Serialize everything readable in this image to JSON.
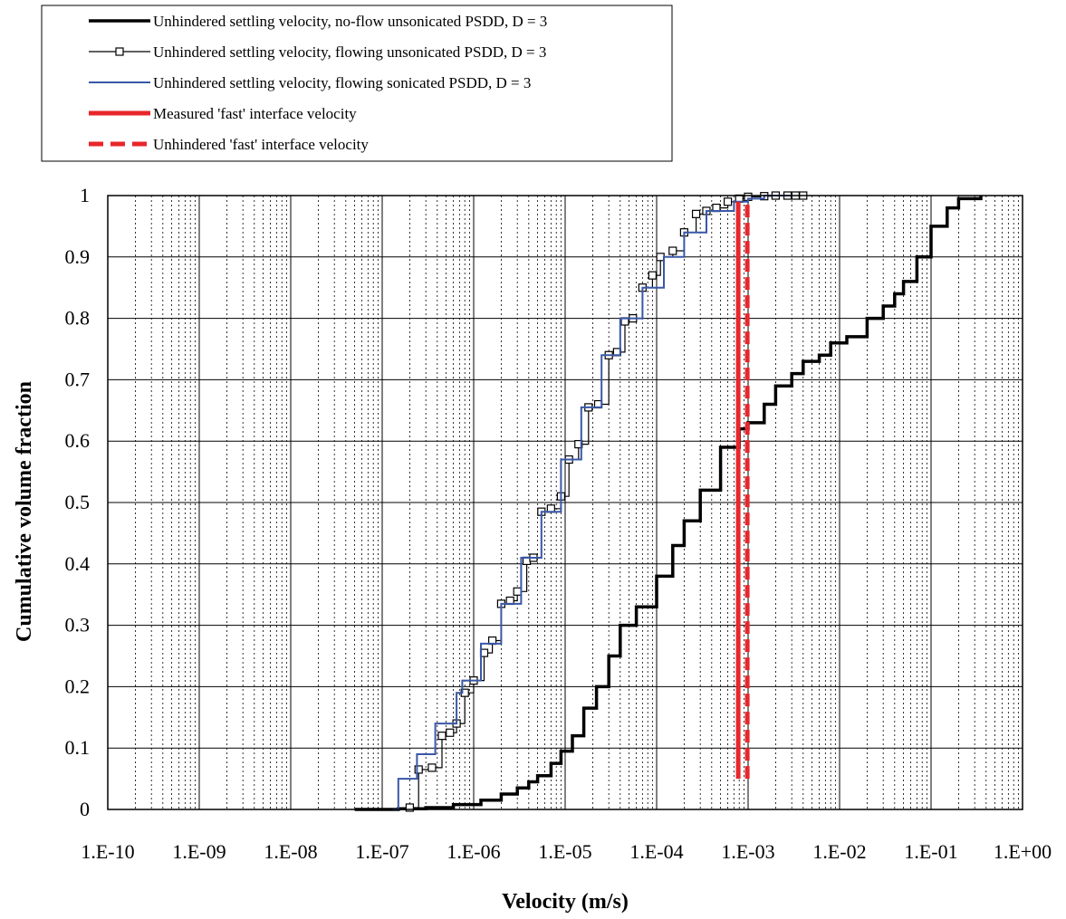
{
  "chart_data": {
    "type": "line",
    "xlabel": "Velocity (m/s)",
    "ylabel": "Cumulative volume fraction",
    "x_scale": "log",
    "xlim": [
      1e-10,
      1
    ],
    "ylim": [
      0,
      1
    ],
    "x_tick_labels": [
      "1.E-10",
      "1.E-09",
      "1.E-08",
      "1.E-07",
      "1.E-06",
      "1.E-05",
      "1.E-04",
      "1.E-03",
      "1.E-02",
      "1.E-01",
      "1.E+00"
    ],
    "y_tick_labels": [
      "0",
      "0.1",
      "0.2",
      "0.3",
      "0.4",
      "0.5",
      "0.6",
      "0.7",
      "0.8",
      "0.9",
      "1"
    ],
    "grid": {
      "major": "solid",
      "minor_x": "dotted"
    },
    "legend_position": "top-left, above plot",
    "series": [
      {
        "name": "Unhindered settling velocity, no-flow unsonicated PSDD, D = 3",
        "color": "#000000",
        "style": "thick-solid",
        "x": [
          5e-08,
          1.5e-07,
          3e-07,
          6e-07,
          1.2e-06,
          2e-06,
          3e-06,
          4e-06,
          5e-06,
          7e-06,
          9e-06,
          1.2e-05,
          1.6e-05,
          2.2e-05,
          3e-05,
          4e-05,
          6e-05,
          0.0001,
          0.00015,
          0.0002,
          0.0003,
          0.0005,
          0.0008,
          0.001,
          0.0015,
          0.002,
          0.003,
          0.004,
          0.006,
          0.008,
          0.012,
          0.02,
          0.03,
          0.04,
          0.05,
          0.07,
          0.1,
          0.15,
          0.2,
          0.35
        ],
        "y": [
          0,
          0.001,
          0.003,
          0.008,
          0.015,
          0.025,
          0.035,
          0.045,
          0.055,
          0.075,
          0.095,
          0.12,
          0.165,
          0.2,
          0.25,
          0.3,
          0.33,
          0.38,
          0.43,
          0.47,
          0.52,
          0.59,
          0.62,
          0.63,
          0.66,
          0.69,
          0.71,
          0.73,
          0.74,
          0.76,
          0.77,
          0.8,
          0.82,
          0.84,
          0.86,
          0.9,
          0.95,
          0.98,
          0.995,
          1.0
        ]
      },
      {
        "name": "Unhindered settling velocity, flowing unsonicated PSDD, D = 3",
        "color": "#000000",
        "style": "thin-solid-square-markers",
        "x": [
          2e-07,
          2.5e-07,
          3.5e-07,
          4.5e-07,
          5.5e-07,
          6.5e-07,
          8e-07,
          1e-06,
          1.3e-06,
          1.6e-06,
          2e-06,
          2.5e-06,
          3e-06,
          3.8e-06,
          4.5e-06,
          5.5e-06,
          7e-06,
          9e-06,
          1.1e-05,
          1.4e-05,
          1.8e-05,
          2.3e-05,
          3e-05,
          3.7e-05,
          4.5e-05,
          5.5e-05,
          7e-05,
          9e-05,
          0.00011,
          0.00015,
          0.0002,
          0.00027,
          0.00035,
          0.00045,
          0.0006,
          0.0008,
          0.001,
          0.0015,
          0.002,
          0.0027,
          0.0033,
          0.004
        ],
        "y": [
          0.003,
          0.065,
          0.068,
          0.12,
          0.125,
          0.14,
          0.19,
          0.21,
          0.255,
          0.275,
          0.335,
          0.34,
          0.355,
          0.405,
          0.41,
          0.485,
          0.49,
          0.51,
          0.57,
          0.595,
          0.655,
          0.66,
          0.74,
          0.745,
          0.795,
          0.8,
          0.85,
          0.87,
          0.9,
          0.91,
          0.94,
          0.97,
          0.975,
          0.98,
          0.99,
          0.995,
          0.998,
          0.999,
          1.0,
          1.0,
          1.0,
          1.0
        ]
      },
      {
        "name": "Unhindered settling velocity, flowing sonicated PSDD, D = 3",
        "color": "#3a58a8",
        "style": "solid",
        "x": [
          1.3e-07,
          1.5e-07,
          2.4e-07,
          3.8e-07,
          4.5e-07,
          6.5e-07,
          7.5e-07,
          1e-06,
          1.2e-06,
          1.8e-06,
          2e-06,
          3e-06,
          3.3e-06,
          5e-06,
          5.5e-06,
          8e-06,
          9e-06,
          1.3e-05,
          1.5e-05,
          2.2e-05,
          2.5e-05,
          3.5e-05,
          4e-05,
          6e-05,
          7e-05,
          0.0001,
          0.00012,
          0.00017,
          0.0002,
          0.00028,
          0.00035,
          0.0005,
          0.0007,
          0.001,
          0.0015,
          0.003
        ],
        "y": [
          0.0,
          0.05,
          0.09,
          0.14,
          0.14,
          0.19,
          0.21,
          0.21,
          0.27,
          0.27,
          0.335,
          0.335,
          0.41,
          0.41,
          0.485,
          0.485,
          0.57,
          0.57,
          0.655,
          0.655,
          0.74,
          0.74,
          0.8,
          0.8,
          0.85,
          0.85,
          0.9,
          0.9,
          0.94,
          0.94,
          0.975,
          0.975,
          0.99,
          0.995,
          1.0,
          1.0
        ]
      },
      {
        "name": "Measured 'fast' interface velocity",
        "color": "#e8262b",
        "style": "thick-solid-vertical",
        "x": [
          0.00078,
          0.00078
        ],
        "y": [
          0.05,
          0.99
        ]
      },
      {
        "name": "Unhindered 'fast' interface velocity",
        "color": "#e8262b",
        "style": "thick-dashed-vertical",
        "x": [
          0.00098,
          0.00098
        ],
        "y": [
          0.05,
          0.99
        ]
      }
    ]
  }
}
